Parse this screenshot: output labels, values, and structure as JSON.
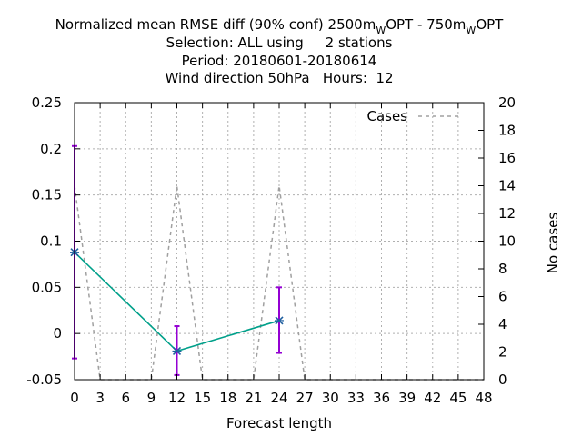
{
  "chart_data": {
    "type": "line",
    "title": {
      "line1": {
        "prefix": "Normalized mean RMSE diff (90% conf) 2500m",
        "sub1": "W",
        "middle": "OPT - 750m",
        "sub2": "W",
        "suffix": "OPT"
      },
      "line2": "Selection: ALL using     2 stations",
      "line3": "Period: 20180601-20180614",
      "line4": "Wind direction 50hPa   Hours:  12"
    },
    "xlabel": "Forecast length",
    "ylabel": "",
    "y2label": "No cases",
    "xlim": [
      0,
      48
    ],
    "ylim": [
      -0.05,
      0.25
    ],
    "y2lim": [
      0,
      20
    ],
    "grid": true,
    "xticks": [
      0,
      3,
      6,
      9,
      12,
      15,
      18,
      21,
      24,
      27,
      30,
      33,
      36,
      39,
      42,
      45,
      48
    ],
    "yticks": [
      -0.05,
      0,
      0.05,
      0.1,
      0.15,
      0.2,
      0.25
    ],
    "ytick_labels": [
      "-0.05",
      "0",
      "0.05",
      "0.1",
      "0.15",
      "0.2",
      "0.25"
    ],
    "y2ticks": [
      0,
      2,
      4,
      6,
      8,
      10,
      12,
      14,
      16,
      18,
      20
    ],
    "legend": {
      "placement": "top-right",
      "entries": [
        "Cases"
      ]
    },
    "series": [
      {
        "axis": "y",
        "color": "#00a08a",
        "marker_color": "#1f5f9f",
        "points": [
          {
            "x": 0,
            "y": 0.088,
            "lo": -0.027,
            "hi": 0.203
          },
          {
            "x": 12,
            "y": -0.019,
            "lo": -0.045,
            "hi": 0.008
          },
          {
            "x": 24,
            "y": 0.014,
            "lo": -0.021,
            "hi": 0.05
          }
        ],
        "errorbar_color": "#9400d3"
      },
      {
        "name": "Cases",
        "axis": "y2",
        "color": "#a0a0a0",
        "dashed": true,
        "x": [
          0,
          3,
          9,
          12,
          15,
          21,
          24,
          27,
          48
        ],
        "values": [
          14,
          0,
          0,
          14,
          0,
          0,
          14,
          0,
          0
        ]
      }
    ]
  }
}
